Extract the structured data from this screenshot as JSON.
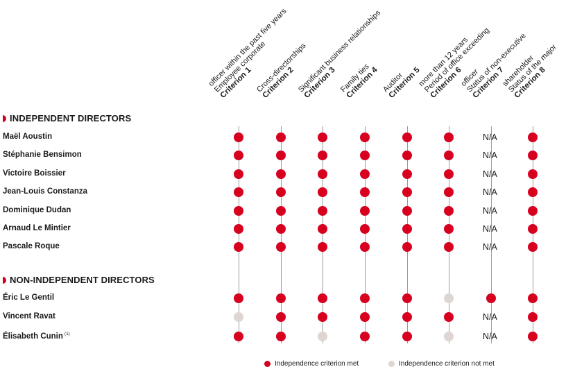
{
  "colors": {
    "met": "#d7001f",
    "not_met": "#ddd6d3",
    "accent": "#d7001f"
  },
  "criteria": [
    {
      "title": "Criterion 1",
      "desc": [
        "Employee corporate",
        "officer within the past five years"
      ]
    },
    {
      "title": "Criterion 2",
      "desc": [
        "Cross-directorships"
      ]
    },
    {
      "title": "Criterion 3",
      "desc": [
        "Significant business relationships"
      ]
    },
    {
      "title": "Criterion 4",
      "desc": [
        "Family ties"
      ]
    },
    {
      "title": "Criterion 5",
      "desc": [
        "Auditor"
      ]
    },
    {
      "title": "Criterion 6",
      "desc": [
        "Period of office exceeding",
        "more than 12 years"
      ]
    },
    {
      "title": "Criterion 7",
      "desc": [
        "Status of non-executive",
        "officer"
      ]
    },
    {
      "title": "Criterion 8",
      "desc": [
        "Status of the major",
        "shareholder"
      ]
    }
  ],
  "sections": {
    "independent": "INDEPENDENT DIRECTORS",
    "non_independent": "NON-INDEPENDENT DIRECTORS"
  },
  "directors": [
    {
      "name": "Maël Aoustin",
      "group": "independent",
      "values": [
        "met",
        "met",
        "met",
        "met",
        "met",
        "met",
        "N/A",
        "met"
      ]
    },
    {
      "name": "Stéphanie Bensimon",
      "group": "independent",
      "values": [
        "met",
        "met",
        "met",
        "met",
        "met",
        "met",
        "N/A",
        "met"
      ]
    },
    {
      "name": "Victoire Boissier",
      "group": "independent",
      "values": [
        "met",
        "met",
        "met",
        "met",
        "met",
        "met",
        "N/A",
        "met"
      ]
    },
    {
      "name": "Jean-Louis Constanza",
      "group": "independent",
      "values": [
        "met",
        "met",
        "met",
        "met",
        "met",
        "met",
        "N/A",
        "met"
      ]
    },
    {
      "name": "Dominique Dudan",
      "group": "independent",
      "values": [
        "met",
        "met",
        "met",
        "met",
        "met",
        "met",
        "N/A",
        "met"
      ]
    },
    {
      "name": "Arnaud Le Mintier",
      "group": "independent",
      "values": [
        "met",
        "met",
        "met",
        "met",
        "met",
        "met",
        "N/A",
        "met"
      ]
    },
    {
      "name": "Pascale Roque",
      "group": "independent",
      "values": [
        "met",
        "met",
        "met",
        "met",
        "met",
        "met",
        "N/A",
        "met"
      ]
    },
    {
      "name": "Éric Le Gentil",
      "group": "non_independent",
      "values": [
        "met",
        "met",
        "met",
        "met",
        "met",
        "not",
        "met",
        "met"
      ]
    },
    {
      "name": "Vincent Ravat",
      "group": "non_independent",
      "values": [
        "not",
        "met",
        "met",
        "met",
        "met",
        "met",
        "N/A",
        "met"
      ]
    },
    {
      "name": "Élisabeth Cunin",
      "note": "(1)",
      "group": "non_independent",
      "values": [
        "met",
        "met",
        "not",
        "met",
        "met",
        "not",
        "N/A",
        "met"
      ]
    }
  ],
  "na_label": "N/A",
  "legend": {
    "met": "Independence criterion met",
    "not_met": "Independence criterion not met"
  }
}
